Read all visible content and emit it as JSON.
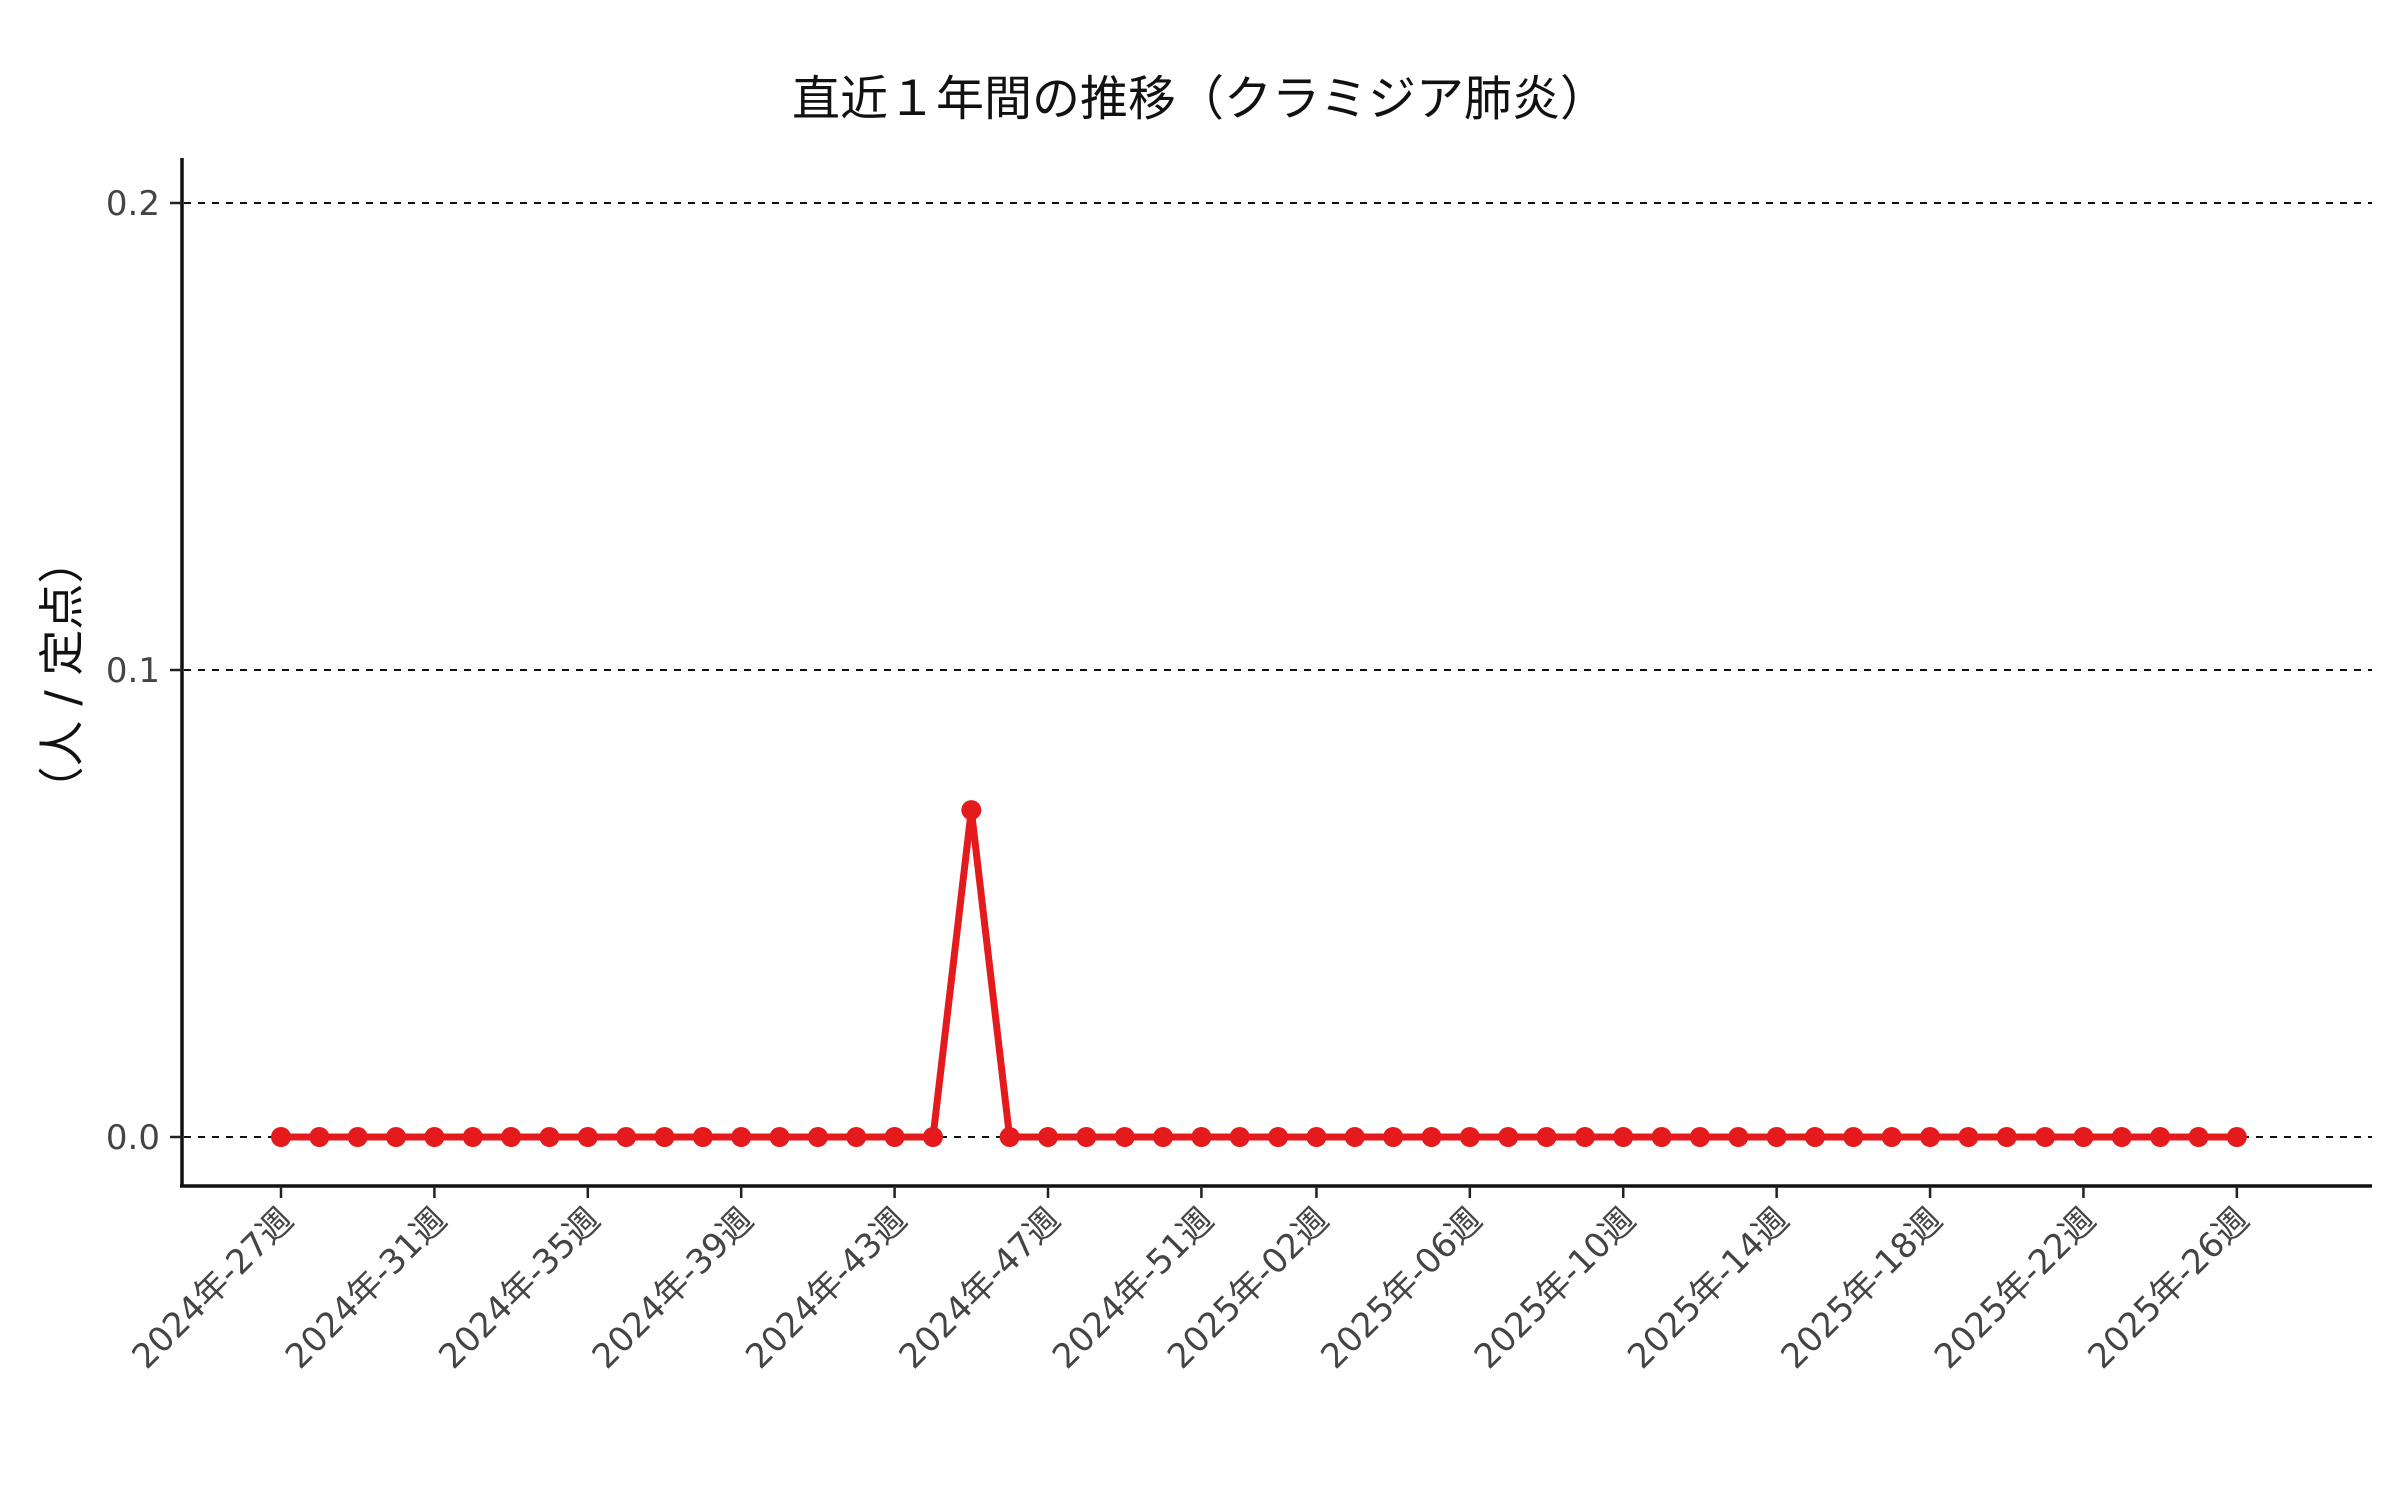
{
  "colors": {
    "series": "#e41a1c",
    "axis": "#111111",
    "grid": "#111111",
    "text": "#444444"
  },
  "chart_data": {
    "type": "line",
    "title": "直近１年間の推移（クラミジア肺炎）",
    "xlabel": "",
    "ylabel": "（人 / 定点）",
    "ylim": [
      -0.01,
      0.21
    ],
    "yticks": [
      0.0,
      0.1,
      0.2
    ],
    "ytick_labels": [
      "0.0",
      "0.1",
      "0.2"
    ],
    "grid": "horizontal dashed at y ticks",
    "xtick_labels": [
      "2024年-27週",
      "2024年-31週",
      "2024年-35週",
      "2024年-39週",
      "2024年-43週",
      "2024年-47週",
      "2024年-51週",
      "2025年-02週",
      "2025年-06週",
      "2025年-10週",
      "2025年-14週",
      "2025年-18週",
      "2025年-22週",
      "2025年-26週"
    ],
    "x": [
      "2024年-27週",
      "2024年-28週",
      "2024年-29週",
      "2024年-30週",
      "2024年-31週",
      "2024年-32週",
      "2024年-33週",
      "2024年-34週",
      "2024年-35週",
      "2024年-36週",
      "2024年-37週",
      "2024年-38週",
      "2024年-39週",
      "2024年-40週",
      "2024年-41週",
      "2024年-42週",
      "2024年-43週",
      "2024年-44週",
      "2024年-45週",
      "2024年-46週",
      "2024年-47週",
      "2024年-48週",
      "2024年-49週",
      "2024年-50週",
      "2024年-51週",
      "2024年-52週",
      "2025年-01週",
      "2025年-02週",
      "2025年-03週",
      "2025年-04週",
      "2025年-05週",
      "2025年-06週",
      "2025年-07週",
      "2025年-08週",
      "2025年-09週",
      "2025年-10週",
      "2025年-11週",
      "2025年-12週",
      "2025年-13週",
      "2025年-14週",
      "2025年-15週",
      "2025年-16週",
      "2025年-17週",
      "2025年-18週",
      "2025年-19週",
      "2025年-20週",
      "2025年-21週",
      "2025年-22週",
      "2025年-23週",
      "2025年-24週",
      "2025年-25週",
      "2025年-26週"
    ],
    "series": [
      {
        "values": [
          0,
          0,
          0,
          0,
          0,
          0,
          0,
          0,
          0,
          0,
          0,
          0,
          0,
          0,
          0,
          0,
          0,
          0,
          0.07,
          0,
          0,
          0,
          0,
          0,
          0,
          0,
          0,
          0,
          0,
          0,
          0,
          0,
          0,
          0,
          0,
          0,
          0,
          0,
          0,
          0,
          0,
          0,
          0,
          0,
          0,
          0,
          0,
          0,
          0,
          0,
          0,
          0
        ]
      }
    ]
  }
}
